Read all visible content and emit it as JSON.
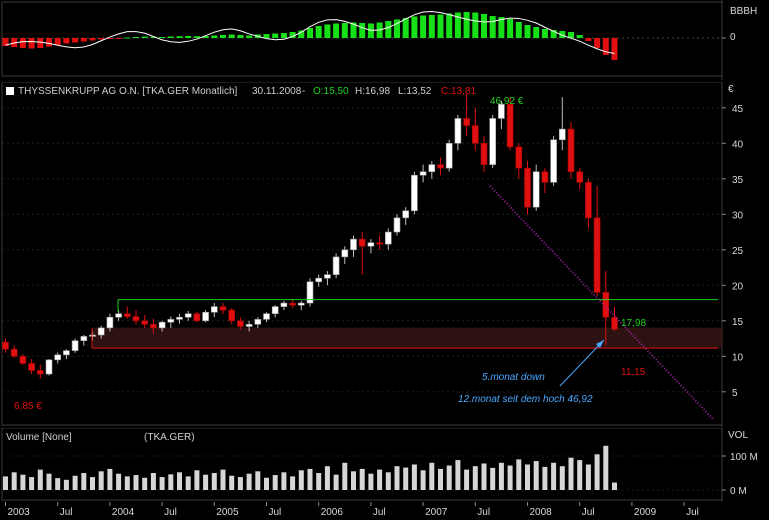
{
  "indicator_panel": {
    "axis_label": "BBBH",
    "ticks": [
      {
        "label": "0",
        "value": 0
      }
    ]
  },
  "price_panel": {
    "header_name": "THYSSENKRUPP AG O.N. [TKA.GER Monatlich]",
    "header_date": "30.11.2008",
    "header_open": "O:15,50",
    "header_high": "H:16,98",
    "header_low": "L:13,52",
    "header_close": "C:13,81",
    "currency_label": "€",
    "ticks": [
      {
        "label": "45",
        "value": 45
      },
      {
        "label": "40",
        "value": 40
      },
      {
        "label": "35",
        "value": 35
      },
      {
        "label": "30",
        "value": 30
      },
      {
        "label": "25",
        "value": 25
      },
      {
        "label": "20",
        "value": 20
      },
      {
        "label": "15",
        "value": 15
      },
      {
        "label": "10",
        "value": 10
      },
      {
        "label": "5",
        "value": 5
      }
    ],
    "annotations": {
      "high": "46,92 €",
      "low": "6,85 €",
      "green_level": "17,98",
      "red_level": "11,15",
      "note1": "5.monat down",
      "note2": "12.monat  seit dem hoch 46,92"
    },
    "colors": {
      "up": "#ffffff",
      "down": "#e01010",
      "support_green": "#20d020",
      "support_red": "#e01010",
      "note": "#4aa8ff",
      "trend": "#a020a0"
    }
  },
  "volume_panel": {
    "header": "Volume [None]",
    "header_symbol": "(TKA.GER)",
    "axis_label": "VOL",
    "ticks": [
      {
        "label": "100 M",
        "value": 100
      },
      {
        "label": "0 M",
        "value": 0
      }
    ]
  },
  "x_axis": {
    "labels": [
      {
        "text": "2003",
        "month": 0
      },
      {
        "text": "Jul",
        "month": 6
      },
      {
        "text": "2004",
        "month": 12
      },
      {
        "text": "Jul",
        "month": 18
      },
      {
        "text": "2005",
        "month": 24
      },
      {
        "text": "Jul",
        "month": 30
      },
      {
        "text": "2006",
        "month": 36
      },
      {
        "text": "Jul",
        "month": 42
      },
      {
        "text": "2007",
        "month": 48
      },
      {
        "text": "Jul",
        "month": 54
      },
      {
        "text": "2008",
        "month": 60
      },
      {
        "text": "Jul",
        "month": 66
      },
      {
        "text": "2009",
        "month": 72
      },
      {
        "text": "Jul",
        "month": 78
      }
    ]
  },
  "chart_data": {
    "type": "candlestick",
    "title": "THYSSENKRUPP AG O.N. [TKA.GER Monatlich]",
    "ylim": [
      3,
      50
    ],
    "support_levels": [
      17.98,
      11.15
    ],
    "candles": [
      [
        12.0,
        12.5,
        10.5,
        11.0
      ],
      [
        11.0,
        11.5,
        9.8,
        10.0
      ],
      [
        10.0,
        10.3,
        8.8,
        9.0
      ],
      [
        9.0,
        9.6,
        7.5,
        8.0
      ],
      [
        8.0,
        8.8,
        6.85,
        7.5
      ],
      [
        7.5,
        9.6,
        7.3,
        9.5
      ],
      [
        9.5,
        10.5,
        9.0,
        10.2
      ],
      [
        10.2,
        11.0,
        9.6,
        10.8
      ],
      [
        10.8,
        12.5,
        10.5,
        12.2
      ],
      [
        12.2,
        13.0,
        11.5,
        12.8
      ],
      [
        12.8,
        13.5,
        12.2,
        13.0
      ],
      [
        13.0,
        14.3,
        12.5,
        14.0
      ],
      [
        14.0,
        16.0,
        13.5,
        15.5
      ],
      [
        15.5,
        16.5,
        15.0,
        16.0
      ],
      [
        16.0,
        17.0,
        15.3,
        15.6
      ],
      [
        15.6,
        16.5,
        14.5,
        15.0
      ],
      [
        15.0,
        15.8,
        14.0,
        14.5
      ],
      [
        14.5,
        15.3,
        13.2,
        14.0
      ],
      [
        14.0,
        15.0,
        13.5,
        14.8
      ],
      [
        14.8,
        15.6,
        14.0,
        15.2
      ],
      [
        15.2,
        16.0,
        14.6,
        15.5
      ],
      [
        15.5,
        16.4,
        15.0,
        16.0
      ],
      [
        16.0,
        16.3,
        14.8,
        15.0
      ],
      [
        15.0,
        16.5,
        14.8,
        16.2
      ],
      [
        16.2,
        17.5,
        15.5,
        17.0
      ],
      [
        17.0,
        17.5,
        16.0,
        16.5
      ],
      [
        16.5,
        16.8,
        14.5,
        15.0
      ],
      [
        15.0,
        15.5,
        13.8,
        14.2
      ],
      [
        14.2,
        15.0,
        13.5,
        14.5
      ],
      [
        14.5,
        15.5,
        14.0,
        15.2
      ],
      [
        15.2,
        16.2,
        14.8,
        16.0
      ],
      [
        16.0,
        17.2,
        15.5,
        17.0
      ],
      [
        17.0,
        17.8,
        16.5,
        17.5
      ],
      [
        17.5,
        18.0,
        16.8,
        17.2
      ],
      [
        17.2,
        17.8,
        16.5,
        17.5
      ],
      [
        17.5,
        21.0,
        17.0,
        20.5
      ],
      [
        20.5,
        21.5,
        19.8,
        21.0
      ],
      [
        21.0,
        22.0,
        20.0,
        21.5
      ],
      [
        21.5,
        24.5,
        21.0,
        24.0
      ],
      [
        24.0,
        25.5,
        23.0,
        25.0
      ],
      [
        25.0,
        27.0,
        24.0,
        26.5
      ],
      [
        26.5,
        27.5,
        21.5,
        25.5
      ],
      [
        25.5,
        26.5,
        24.5,
        26.0
      ],
      [
        26.0,
        27.0,
        25.0,
        25.8
      ],
      [
        25.8,
        28.0,
        25.0,
        27.5
      ],
      [
        27.5,
        30.0,
        27.0,
        29.5
      ],
      [
        29.5,
        31.0,
        28.5,
        30.5
      ],
      [
        30.5,
        36.0,
        30.0,
        35.5
      ],
      [
        35.5,
        37.0,
        34.5,
        36.0
      ],
      [
        36.0,
        37.5,
        35.0,
        37.0
      ],
      [
        37.0,
        38.0,
        35.5,
        36.5
      ],
      [
        36.5,
        40.5,
        36.0,
        40.0
      ],
      [
        40.0,
        44.0,
        39.0,
        43.5
      ],
      [
        43.5,
        46.92,
        41.0,
        42.5
      ],
      [
        42.5,
        45.0,
        39.0,
        40.0
      ],
      [
        40.0,
        41.0,
        36.0,
        37.0
      ],
      [
        37.0,
        44.0,
        36.5,
        43.5
      ],
      [
        43.5,
        46.0,
        42.0,
        45.5
      ],
      [
        45.5,
        46.5,
        39.0,
        39.5
      ],
      [
        39.5,
        40.0,
        35.0,
        36.5
      ],
      [
        36.5,
        37.5,
        30.0,
        31.0
      ],
      [
        31.0,
        37.0,
        30.5,
        36.0
      ],
      [
        36.0,
        36.5,
        33.0,
        34.5
      ],
      [
        34.5,
        41.0,
        34.0,
        40.5
      ],
      [
        40.5,
        46.5,
        39.0,
        42.0
      ],
      [
        42.0,
        43.0,
        35.0,
        36.0
      ],
      [
        36.0,
        36.5,
        33.5,
        34.5
      ],
      [
        34.5,
        35.0,
        28.0,
        29.5
      ],
      [
        29.5,
        34.0,
        18.5,
        19.0
      ],
      [
        19.0,
        22.0,
        11.5,
        15.5
      ],
      [
        15.5,
        16.98,
        13.52,
        13.81
      ]
    ],
    "volume": [
      40,
      52,
      45,
      38,
      60,
      48,
      35,
      30,
      42,
      50,
      38,
      55,
      62,
      48,
      40,
      44,
      36,
      50,
      38,
      46,
      52,
      40,
      58,
      45,
      50,
      60,
      42,
      38,
      48,
      55,
      36,
      44,
      52,
      40,
      58,
      62,
      50,
      70,
      45,
      80,
      55,
      62,
      48,
      60,
      52,
      70,
      66,
      75,
      58,
      80,
      62,
      72,
      88,
      60,
      70,
      78,
      65,
      80,
      72,
      90,
      75,
      85,
      68,
      80,
      70,
      95,
      88,
      75,
      105,
      130,
      22
    ],
    "indicator": [
      -0.8,
      -0.9,
      -1.0,
      -1.05,
      -1.0,
      -0.85,
      -0.7,
      -0.55,
      -0.45,
      -0.35,
      -0.25,
      -0.15,
      -0.1,
      -0.05,
      0.05,
      0.1,
      0.15,
      0.12,
      0.1,
      0.15,
      0.18,
      0.2,
      0.18,
      0.2,
      0.25,
      0.3,
      0.35,
      0.3,
      0.25,
      0.35,
      0.4,
      0.45,
      0.5,
      0.6,
      0.75,
      1.0,
      1.2,
      1.35,
      1.45,
      1.5,
      1.55,
      1.5,
      1.45,
      1.55,
      1.7,
      1.85,
      2.0,
      2.15,
      2.25,
      2.3,
      2.35,
      2.45,
      2.55,
      2.6,
      2.55,
      2.4,
      2.2,
      2.1,
      1.9,
      1.6,
      1.3,
      1.1,
      0.9,
      0.8,
      0.7,
      0.6,
      0.3,
      -0.3,
      -1.0,
      -1.7,
      -2.2
    ]
  }
}
